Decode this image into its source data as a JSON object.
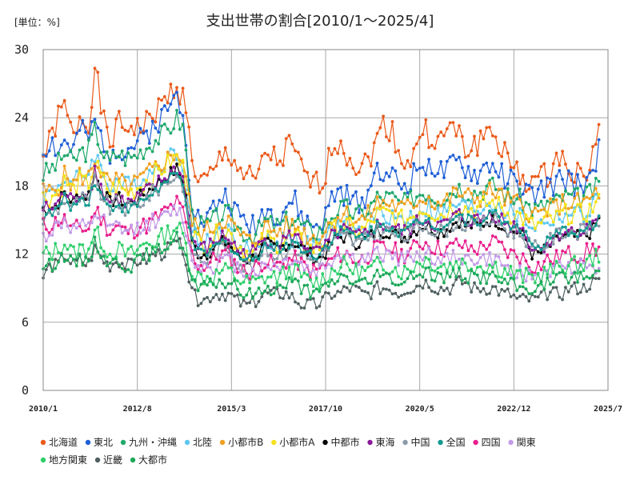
{
  "chart_data": {
    "type": "line",
    "title": "支出世帯の割合[2010/1～2025/4]",
    "unit_label": "[単位：%]",
    "ylim": [
      0,
      30
    ],
    "yticks": [
      "0",
      "6",
      "12",
      "18",
      "24",
      "30"
    ],
    "xlim": [
      0,
      186
    ],
    "xticks": [
      {
        "label": "2010/1",
        "x": 0
      },
      {
        "label": "2012/8",
        "x": 31
      },
      {
        "label": "2015/3",
        "x": 62
      },
      {
        "label": "2017/10",
        "x": 93
      },
      {
        "label": "2020/5",
        "x": 124
      },
      {
        "label": "2022/12",
        "x": 155
      },
      {
        "label": "2025/7",
        "x": 186
      }
    ],
    "grid": true,
    "legend_position": "bottom",
    "series": [
      {
        "name": "北海道",
        "color": "#EA5A1A",
        "base": [
          20.5,
          22,
          24,
          25,
          22,
          24.5,
          23,
          28.5,
          24,
          21.5,
          23.5,
          23,
          23.5,
          23,
          23.5,
          24.5,
          25,
          26,
          27,
          25.5,
          21,
          18,
          18.5,
          19,
          20.5,
          21,
          20,
          19,
          18.5,
          18.5,
          21,
          20.5,
          20,
          21.5,
          21,
          19,
          18.5,
          18,
          19,
          21.5,
          22,
          21,
          20,
          19.5,
          20.5,
          22,
          23.5,
          23,
          21,
          20,
          20.5,
          23,
          22.5,
          22,
          22,
          23.5,
          22.5,
          21,
          21.5,
          22,
          23,
          22.5,
          21,
          20,
          19,
          18.5,
          18.5,
          18.5,
          19,
          20,
          20.5,
          20,
          19,
          19,
          20,
          24
        ],
        "amp": 1.2,
        "seed": 1
      },
      {
        "name": "東北",
        "color": "#1F5FD6",
        "base": [
          21,
          22,
          21,
          22,
          21,
          23,
          22,
          23.5,
          22,
          21,
          21.5,
          21,
          21.5,
          22,
          22.5,
          23.5,
          24,
          25,
          26,
          24.5,
          17,
          15,
          15,
          16,
          17,
          17,
          15.5,
          15,
          14.5,
          15,
          16,
          15.5,
          15.5,
          16.5,
          16.5,
          15,
          14.5,
          14.5,
          15,
          17,
          17.5,
          17,
          16.5,
          16.5,
          18,
          19.5,
          19.5,
          19,
          18,
          18,
          19,
          20,
          20,
          19.5,
          19,
          19.5,
          20,
          19.5,
          19,
          19,
          20,
          19.5,
          19,
          18.5,
          18,
          17.5,
          17,
          17.5,
          18,
          18,
          18.5,
          18.5,
          18,
          18.5,
          19,
          21
        ],
        "amp": 1.1,
        "seed": 2
      },
      {
        "name": "九州・沖縄",
        "color": "#1FA86B",
        "base": [
          19,
          19.5,
          20,
          21,
          20,
          21,
          21,
          23,
          21,
          20,
          21,
          20.5,
          20.5,
          21,
          21.5,
          22,
          22.5,
          23,
          24,
          23,
          15.5,
          14.5,
          14.5,
          15,
          15.5,
          15.5,
          14.5,
          14,
          13.5,
          14,
          15,
          14.5,
          14.5,
          15,
          15,
          14.5,
          14,
          14,
          14.5,
          15.5,
          16,
          16,
          15.5,
          15.5,
          16,
          17,
          17,
          17,
          16.5,
          16.5,
          17,
          17.5,
          17.5,
          17,
          17,
          17.5,
          18,
          17.5,
          17.5,
          17.5,
          18,
          18,
          17.5,
          17,
          17,
          16.5,
          16,
          16,
          16.5,
          16.5,
          17,
          17,
          17,
          17,
          17.5,
          18
        ],
        "amp": 0.9,
        "seed": 3
      },
      {
        "name": "北陸",
        "color": "#5FC8F0",
        "base": [
          17,
          17.5,
          18,
          19,
          18,
          19,
          19,
          21,
          19,
          18,
          18.5,
          18,
          18,
          18.5,
          19,
          19.5,
          20,
          20.5,
          21,
          20,
          14,
          13,
          13,
          13.5,
          14,
          14,
          13,
          12.5,
          12,
          12.5,
          13.5,
          13,
          13,
          13.5,
          13.5,
          13,
          12.5,
          12.5,
          13,
          14,
          14.5,
          14.5,
          14,
          14,
          14.5,
          15.5,
          15.5,
          15.5,
          15,
          15,
          15.5,
          16,
          16,
          15.5,
          15.5,
          16,
          16.5,
          16,
          16,
          16,
          16.5,
          16.5,
          16,
          15.5,
          15.5,
          15,
          14.5,
          14.5,
          15,
          15,
          15.5,
          15.5,
          15.5,
          15.5,
          16,
          17
        ],
        "amp": 0.9,
        "seed": 4
      },
      {
        "name": "小都市B",
        "color": "#F0A020",
        "base": [
          17.5,
          17.5,
          18,
          19,
          18,
          19,
          18.5,
          20.5,
          19,
          18,
          18.5,
          18,
          18,
          18.5,
          19,
          19.5,
          20,
          20.5,
          21,
          20,
          15,
          14,
          14,
          14.5,
          15,
          15,
          14,
          13.5,
          13,
          13.5,
          14.5,
          14,
          14,
          14.5,
          14.5,
          14,
          13.5,
          13.5,
          14,
          15,
          15.5,
          15.5,
          15,
          15,
          15.5,
          16.5,
          16.5,
          16.5,
          16,
          16,
          16.5,
          17,
          17,
          16.5,
          16.5,
          17,
          17.5,
          17,
          17,
          17,
          17.5,
          17.5,
          17,
          16.5,
          16.5,
          16,
          15.5,
          15.5,
          16,
          16,
          16.5,
          16.5,
          16.5,
          16.5,
          17,
          17.5
        ],
        "amp": 0.9,
        "seed": 5
      },
      {
        "name": "小都市A",
        "color": "#F5E21A",
        "base": [
          17,
          17,
          17.5,
          18.5,
          17.5,
          18.5,
          18,
          20,
          18.5,
          17.5,
          18,
          17.5,
          17.5,
          18,
          18.5,
          19,
          19.5,
          20,
          20.5,
          19.5,
          14,
          13,
          13,
          13.5,
          14,
          14,
          13,
          12.5,
          12,
          12.5,
          13.5,
          13,
          13,
          13.5,
          13.5,
          13,
          12.5,
          12.5,
          13,
          14,
          14.5,
          14.5,
          14,
          14,
          14.5,
          15.5,
          15.5,
          15.5,
          15,
          15,
          15.5,
          16,
          16,
          15.5,
          15.5,
          16,
          16.5,
          16,
          16,
          16,
          16.5,
          16.5,
          16,
          15.5,
          15.5,
          15,
          14.5,
          14.5,
          15,
          15,
          15.5,
          15.5,
          15.5,
          15.5,
          16,
          16.5
        ],
        "amp": 0.9,
        "seed": 6
      },
      {
        "name": "中都市",
        "color": "#000000",
        "base": [
          16,
          16,
          16.5,
          17.5,
          16.5,
          17.5,
          17,
          19,
          17.5,
          16.5,
          17,
          16.5,
          16.5,
          17,
          17.5,
          18,
          18.5,
          19,
          19.5,
          18.5,
          13,
          12,
          12,
          12.5,
          13,
          13,
          12,
          11.5,
          11.5,
          12,
          13,
          12.5,
          12.5,
          13,
          13,
          12.5,
          12,
          11.5,
          12,
          13,
          13.5,
          13.5,
          13,
          13,
          13.5,
          14,
          14,
          14,
          13.5,
          13.5,
          14,
          14.5,
          14.5,
          14,
          14,
          14.5,
          15,
          14.5,
          14.5,
          14.5,
          15,
          15,
          14.5,
          14,
          14,
          13.5,
          12,
          12,
          12.5,
          13,
          13.5,
          13.5,
          13.5,
          13.5,
          14,
          15
        ],
        "amp": 0.6,
        "seed": 7
      },
      {
        "name": "東海",
        "color": "#8B1A9A",
        "base": [
          16,
          16,
          16.5,
          17.5,
          16.5,
          17.5,
          17,
          19.5,
          17.5,
          16.5,
          17,
          16.5,
          16.5,
          17,
          17.5,
          18,
          18.5,
          19,
          19.5,
          18.5,
          13.5,
          12.5,
          12.5,
          13,
          13.5,
          13.5,
          12.5,
          12,
          12,
          12.5,
          13.5,
          13,
          13,
          13.5,
          13.5,
          13,
          12.5,
          12,
          12.5,
          13.5,
          14,
          14,
          13.5,
          13.5,
          14,
          14.5,
          14.5,
          14.5,
          14,
          14,
          14.5,
          15,
          15,
          14.5,
          14.5,
          15,
          15.5,
          15,
          15,
          15,
          15.5,
          15.5,
          15,
          14.5,
          14.5,
          14,
          12.5,
          12.5,
          13,
          13.5,
          14,
          14,
          14,
          14,
          14.5,
          15.5
        ],
        "amp": 0.7,
        "seed": 8
      },
      {
        "name": "中国",
        "color": "#8A9AA8",
        "base": [
          15,
          15.5,
          16,
          17,
          16,
          17,
          16.5,
          18.5,
          17,
          16,
          16.5,
          16,
          16,
          16.5,
          17,
          17.5,
          18,
          18.5,
          19,
          18,
          12.5,
          11.5,
          11.5,
          12,
          12.5,
          12.5,
          11.5,
          11,
          11,
          11.5,
          12.5,
          12,
          12,
          12.5,
          12.5,
          12,
          11.5,
          11.5,
          12,
          13,
          13.5,
          13.5,
          13,
          13,
          13.5,
          14,
          14,
          14,
          13.5,
          13.5,
          14,
          14.5,
          14.5,
          14,
          14,
          14.5,
          15,
          14.5,
          14.5,
          14.5,
          15,
          15,
          14.5,
          14,
          14,
          13.5,
          12.5,
          12.5,
          13,
          13.5,
          14,
          14,
          14,
          14,
          14.5,
          15
        ],
        "amp": 0.7,
        "seed": 9
      },
      {
        "name": "全国",
        "color": "#129A8F",
        "base": [
          15.5,
          15.5,
          16,
          17,
          16,
          17,
          16.5,
          18.5,
          17,
          16,
          16.5,
          16,
          16,
          16.5,
          17,
          17.5,
          18,
          18.5,
          19,
          18,
          13,
          12,
          12,
          12.5,
          13,
          13,
          12,
          11.5,
          11.5,
          12,
          13,
          12.5,
          12.5,
          13,
          13,
          12.5,
          12,
          12,
          12.5,
          13.5,
          14,
          14,
          13.5,
          13.5,
          14,
          14.5,
          14.5,
          14.5,
          14,
          14,
          14.5,
          15,
          15,
          14.5,
          14.5,
          15,
          15.5,
          15,
          15,
          15,
          15.5,
          15.5,
          15,
          14.5,
          14.5,
          14,
          12.5,
          12.5,
          13,
          13.5,
          14,
          14,
          14,
          14,
          14.5,
          15
        ],
        "amp": 0.5,
        "seed": 10
      },
      {
        "name": "四国",
        "color": "#E81E8C",
        "base": [
          14.5,
          14.5,
          15,
          15,
          14,
          14.5,
          14,
          16,
          15,
          14,
          14.5,
          14,
          14,
          14.5,
          14.5,
          15,
          15.5,
          16,
          16.5,
          15.5,
          12,
          11,
          11,
          11.5,
          12,
          12,
          11,
          10.5,
          10.5,
          11,
          11.5,
          11,
          11,
          11.5,
          11.5,
          11,
          10.5,
          10.5,
          11,
          11.5,
          12,
          12,
          11.5,
          11.5,
          12,
          12.5,
          12.5,
          12.5,
          12,
          12,
          12.5,
          13,
          13,
          12.5,
          12.5,
          12.5,
          13,
          12.5,
          12.5,
          12.5,
          13,
          13,
          12.5,
          12,
          12,
          11.5,
          11,
          11,
          11.5,
          11.5,
          12,
          12,
          12,
          12,
          12.5,
          12.5
        ],
        "amp": 0.8,
        "seed": 11
      },
      {
        "name": "関東",
        "color": "#C39BE8",
        "base": [
          13.5,
          14,
          14.5,
          15,
          14,
          14.5,
          14,
          15.5,
          15,
          14,
          14.5,
          14,
          14,
          14.5,
          14.5,
          15,
          15,
          15.5,
          16,
          15,
          11.5,
          11,
          11,
          11,
          11.5,
          11.5,
          11,
          10.5,
          10.5,
          10.5,
          11,
          11,
          11,
          11.5,
          11.5,
          11,
          10.5,
          10.5,
          11,
          11.5,
          12,
          12,
          11.5,
          11.5,
          11.5,
          12,
          12,
          12,
          11.5,
          11.5,
          12,
          12,
          12,
          11.5,
          11.5,
          11.5,
          12,
          11.5,
          11.5,
          11.5,
          11.5,
          11.5,
          11,
          10.5,
          10.5,
          10,
          10,
          10,
          10.5,
          10.5,
          11,
          11,
          11,
          11,
          11,
          11
        ],
        "amp": 0.7,
        "seed": 12
      },
      {
        "name": "地方関東",
        "color": "#2FCF6A",
        "base": [
          12,
          12,
          12.5,
          13,
          12,
          12.5,
          12.5,
          14,
          13,
          12,
          12.5,
          12,
          12,
          12.5,
          13,
          13,
          13.5,
          14,
          14.5,
          13.5,
          10.5,
          10,
          10,
          10,
          10.5,
          10.5,
          10,
          9.5,
          9.5,
          9.5,
          10,
          10,
          10,
          10.5,
          10.5,
          10,
          9.5,
          9.5,
          10,
          10.5,
          11,
          11,
          10.5,
          10.5,
          10.5,
          11,
          11,
          11,
          10.5,
          10.5,
          11,
          11.5,
          11.5,
          11,
          11,
          11,
          11.5,
          11,
          11,
          11,
          11,
          11,
          10.5,
          10.5,
          10,
          10,
          10,
          10,
          10.5,
          10.5,
          11,
          11,
          11,
          11,
          11.5,
          12
        ],
        "amp": 0.8,
        "seed": 13
      },
      {
        "name": "近畿",
        "color": "#506060",
        "base": [
          10,
          11,
          11,
          12,
          11,
          11.5,
          11,
          12.5,
          11.5,
          11,
          11.5,
          11,
          11,
          11.5,
          11.5,
          12,
          12,
          12.5,
          13,
          12.5,
          8.5,
          8,
          8,
          8.5,
          8.5,
          8.5,
          8,
          7.5,
          7.5,
          8,
          8.5,
          8.5,
          8.5,
          8.5,
          8,
          7.5,
          7.5,
          7.5,
          8,
          8.5,
          8.5,
          9,
          9,
          8.5,
          8.5,
          9,
          9,
          9,
          8.5,
          9,
          9,
          9.5,
          9.5,
          9,
          9,
          9,
          9.5,
          9.5,
          9,
          9,
          9,
          9,
          8.5,
          8.5,
          8,
          8,
          8,
          8,
          8.5,
          8.5,
          8.5,
          9,
          9,
          9,
          9.5,
          9.5
        ],
        "amp": 0.6,
        "seed": 14
      },
      {
        "name": "大都市",
        "color": "#1EA85A",
        "base": [
          11,
          11,
          11.5,
          12,
          11,
          11.5,
          11.5,
          13,
          12,
          11,
          11.5,
          11,
          11,
          11.5,
          12,
          12,
          12.5,
          13,
          13.5,
          12.5,
          9.5,
          9,
          9,
          9.5,
          9.5,
          9.5,
          9,
          8.5,
          8.5,
          8.5,
          9,
          9,
          9,
          9.5,
          9.5,
          9,
          8.5,
          8.5,
          9,
          9.5,
          10,
          10,
          9.5,
          9.5,
          9.5,
          10,
          10,
          10,
          9.5,
          9.5,
          10,
          10.5,
          10.5,
          10,
          10,
          10,
          10.5,
          10,
          10,
          10,
          10,
          10,
          9.5,
          9.5,
          9,
          9,
          9,
          9,
          9.5,
          9.5,
          10,
          10,
          10,
          10,
          10,
          10.5
        ],
        "amp": 0.6,
        "seed": 15
      }
    ]
  }
}
